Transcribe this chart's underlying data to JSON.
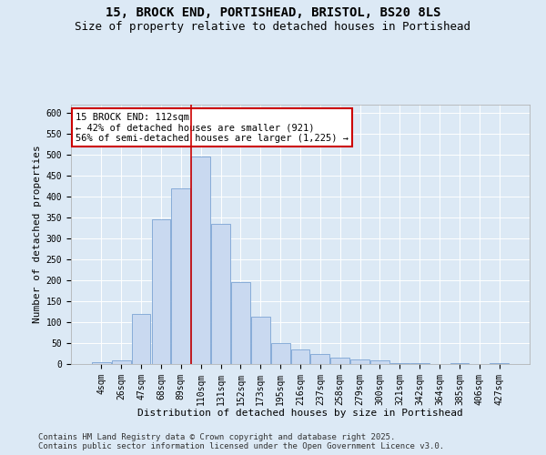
{
  "title_line1": "15, BROCK END, PORTISHEAD, BRISTOL, BS20 8LS",
  "title_line2": "Size of property relative to detached houses in Portishead",
  "xlabel": "Distribution of detached houses by size in Portishead",
  "ylabel": "Number of detached properties",
  "categories": [
    "4sqm",
    "26sqm",
    "47sqm",
    "68sqm",
    "89sqm",
    "110sqm",
    "131sqm",
    "152sqm",
    "173sqm",
    "195sqm",
    "216sqm",
    "237sqm",
    "258sqm",
    "279sqm",
    "300sqm",
    "321sqm",
    "342sqm",
    "364sqm",
    "385sqm",
    "406sqm",
    "427sqm"
  ],
  "values": [
    4,
    8,
    120,
    345,
    420,
    495,
    335,
    195,
    113,
    50,
    34,
    25,
    16,
    10,
    8,
    3,
    2,
    1,
    2,
    1,
    2
  ],
  "bar_color": "#c9d9f0",
  "bar_edge_color": "#7ba4d4",
  "vline_index": 5,
  "vline_color": "#cc0000",
  "annotation_text": "15 BROCK END: 112sqm\n← 42% of detached houses are smaller (921)\n56% of semi-detached houses are larger (1,225) →",
  "annotation_box_color": "#ffffff",
  "annotation_box_edge": "#cc0000",
  "ylim": [
    0,
    620
  ],
  "yticks": [
    0,
    50,
    100,
    150,
    200,
    250,
    300,
    350,
    400,
    450,
    500,
    550,
    600
  ],
  "background_color": "#dce9f5",
  "plot_bg_color": "#dce9f5",
  "footer_text": "Contains HM Land Registry data © Crown copyright and database right 2025.\nContains public sector information licensed under the Open Government Licence v3.0.",
  "title_fontsize": 10,
  "subtitle_fontsize": 9,
  "tick_fontsize": 7,
  "xlabel_fontsize": 8,
  "ylabel_fontsize": 8,
  "footer_fontsize": 6.5,
  "annotation_fontsize": 7.5
}
